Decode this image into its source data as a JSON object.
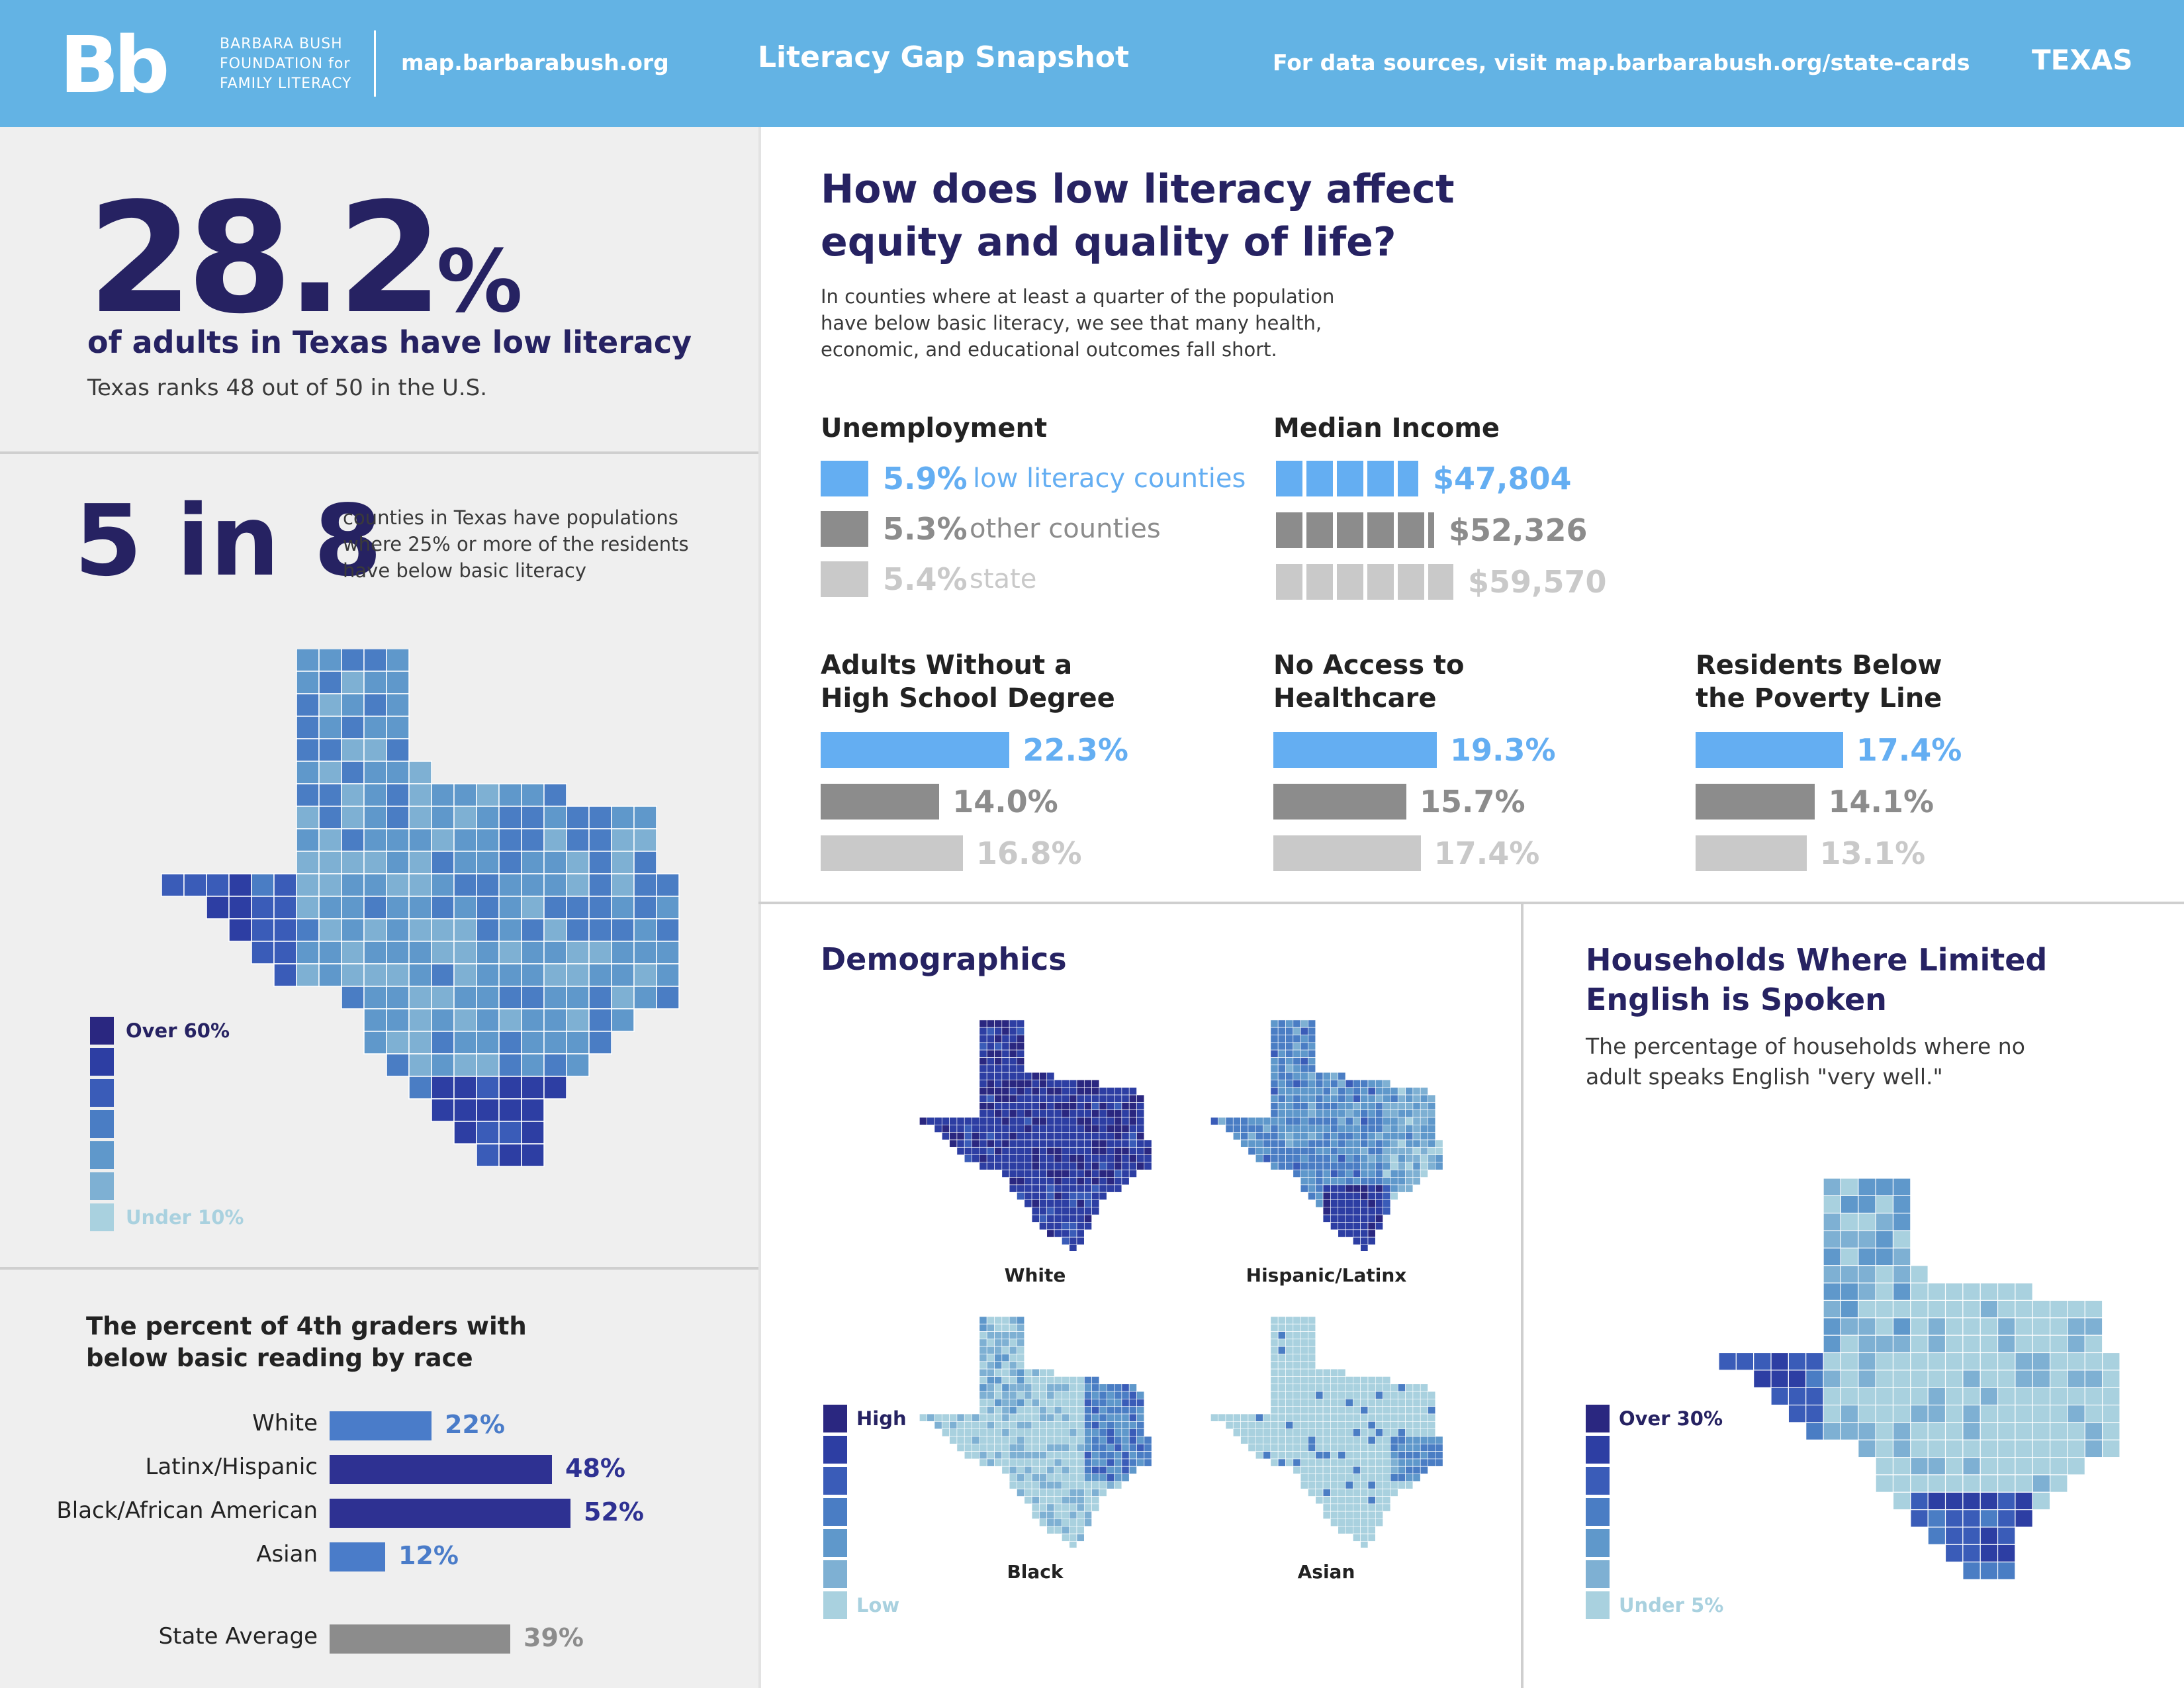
{
  "header": {
    "logo_mark": "Bb",
    "logo_line1": "BARBARA BUSH",
    "logo_line2": "FOUNDATION for",
    "logo_line3": "FAMILY LITERACY",
    "site": "map.barbarabush.org",
    "title": "Literacy Gap Snapshot",
    "sources": "For data sources, visit map.barbarabush.org/state-cards",
    "state": "TEXAS"
  },
  "headline": {
    "percent": "28.2",
    "percent_sign": "%",
    "caption": "of adults in Texas have low literacy",
    "rank": "Texas ranks 48 out of 50 in the U.S."
  },
  "counties": {
    "ratio": "5 in 8",
    "desc_line1": "counties in Texas have populations",
    "desc_line2": "where 25% or more of the residents",
    "desc_line3": "have below basic literacy",
    "legend_high": "Over 60%",
    "legend_low": "Under 10%"
  },
  "grade4": {
    "title_line1": "The percent of 4th graders with",
    "title_line2": "below basic reading by race",
    "rows": [
      {
        "label": "White",
        "value": 22,
        "display": "22%"
      },
      {
        "label": "Latinx/Hispanic",
        "value": 48,
        "display": "48%"
      },
      {
        "label": "Black/African American",
        "value": 52,
        "display": "52%"
      },
      {
        "label": "Asian",
        "value": 12,
        "display": "12%"
      }
    ],
    "average": {
      "label": "State Average",
      "value": 39,
      "display": "39%"
    }
  },
  "equity": {
    "title_line1": "How does low literacy affect",
    "title_line2": "equity and quality of life?",
    "intro_line1": "In counties where at least a quarter of the population",
    "intro_line2": "have below basic literacy, we see that many health,",
    "intro_line3": "economic, and educational outcomes fall short."
  },
  "unemployment": {
    "title": "Unemployment",
    "rows": [
      {
        "value": "5.9%",
        "label": "low literacy counties"
      },
      {
        "value": "5.3%",
        "label": "other counties"
      },
      {
        "value": "5.4%",
        "label": "state"
      }
    ]
  },
  "income": {
    "title": "Median Income",
    "rows": [
      {
        "value": 47804,
        "display": "$47,804"
      },
      {
        "value": 52326,
        "display": "$52,326"
      },
      {
        "value": 59570,
        "display": "$59,570"
      }
    ]
  },
  "indicators": [
    {
      "title_line1": "Adults Without a",
      "title_line2": "High School Degree",
      "rows": [
        {
          "value": 22.3,
          "display": "22.3%"
        },
        {
          "value": 14.0,
          "display": "14.0%"
        },
        {
          "value": 16.8,
          "display": "16.8%"
        }
      ]
    },
    {
      "title_line1": "No Access to",
      "title_line2": "Healthcare",
      "rows": [
        {
          "value": 19.3,
          "display": "19.3%"
        },
        {
          "value": 15.7,
          "display": "15.7%"
        },
        {
          "value": 17.4,
          "display": "17.4%"
        }
      ]
    },
    {
      "title_line1": "Residents Below",
      "title_line2": "the Poverty Line",
      "rows": [
        {
          "value": 17.4,
          "display": "17.4%"
        },
        {
          "value": 14.1,
          "display": "14.1%"
        },
        {
          "value": 13.1,
          "display": "13.1%"
        }
      ]
    }
  ],
  "demographics": {
    "title": "Demographics",
    "maps": [
      "White",
      "Hispanic/Latinx",
      "Black",
      "Asian"
    ],
    "legend_high": "High",
    "legend_low": "Low"
  },
  "english": {
    "title_line1": "Households Where Limited",
    "title_line2": "English is Spoken",
    "desc_line1": "The percentage of households where no",
    "desc_line2": "adult speaks English \"very well.\"",
    "legend_high": "Over 30%",
    "legend_low": "Under 5%"
  },
  "colors": {
    "navy": "#262262",
    "dark_blue": "#2e3192",
    "mid_blue": "#4a7cc9",
    "light_blue": "#63b3e4",
    "bar_blue": "#64aef2",
    "dark_grey": "#8c8c8c",
    "light_grey": "#c9c9c9",
    "scale": [
      "#2a2780",
      "#2d3ea3",
      "#3a5cb8",
      "#4a7dc4",
      "#5f98cb",
      "#7eb0d3",
      "#a9d1df"
    ]
  }
}
